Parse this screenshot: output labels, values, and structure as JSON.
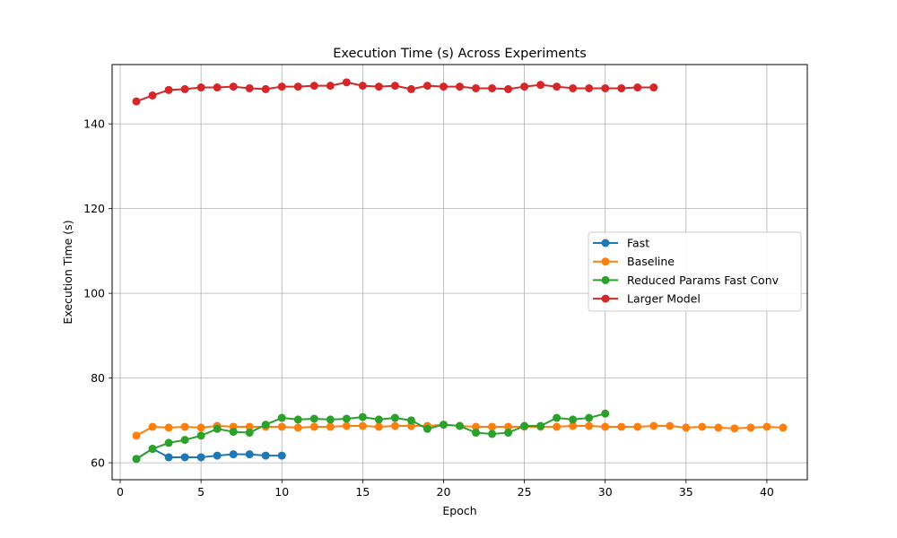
{
  "chart_data": {
    "type": "line",
    "title": "Execution Time (s) Across Experiments",
    "xlabel": "Epoch",
    "ylabel": "Execution Time (s)",
    "xlim": [
      -0.5,
      42.5
    ],
    "ylim": [
      56,
      154
    ],
    "x_ticks": [
      0,
      5,
      10,
      15,
      20,
      25,
      30,
      35,
      40
    ],
    "y_ticks": [
      60,
      80,
      100,
      120,
      140
    ],
    "grid": true,
    "legend_position": "center-right",
    "series": [
      {
        "name": "Fast",
        "color": "#1f77b4",
        "x": [
          1,
          2,
          3,
          4,
          5,
          6,
          7,
          8,
          9,
          10
        ],
        "values": [
          60.9,
          63.3,
          61.3,
          61.3,
          61.3,
          61.7,
          62.0,
          62.0,
          61.7,
          61.7
        ]
      },
      {
        "name": "Baseline",
        "color": "#ff7f0e",
        "x": [
          1,
          2,
          3,
          4,
          5,
          6,
          7,
          8,
          9,
          10,
          11,
          12,
          13,
          14,
          15,
          16,
          17,
          18,
          19,
          20,
          21,
          22,
          23,
          24,
          25,
          26,
          27,
          28,
          29,
          30,
          31,
          32,
          33,
          34,
          35,
          36,
          37,
          38,
          39,
          40,
          41
        ],
        "values": [
          66.4,
          68.5,
          68.3,
          68.5,
          68.3,
          68.7,
          68.5,
          68.5,
          68.5,
          68.5,
          68.3,
          68.5,
          68.5,
          68.7,
          68.7,
          68.5,
          68.7,
          68.7,
          68.7,
          69.0,
          68.7,
          68.5,
          68.5,
          68.5,
          68.5,
          68.5,
          68.5,
          68.7,
          68.7,
          68.5,
          68.5,
          68.5,
          68.7,
          68.7,
          68.3,
          68.5,
          68.3,
          68.1,
          68.3,
          68.5,
          68.3
        ]
      },
      {
        "name": "Reduced Params Fast Conv",
        "color": "#2ca02c",
        "x": [
          1,
          2,
          3,
          4,
          5,
          6,
          7,
          8,
          9,
          10,
          11,
          12,
          13,
          14,
          15,
          16,
          17,
          18,
          19,
          20,
          21,
          22,
          23,
          24,
          25,
          26,
          27,
          28,
          29,
          30
        ],
        "values": [
          60.9,
          63.3,
          64.7,
          65.4,
          66.4,
          68.0,
          67.3,
          67.1,
          69.0,
          70.6,
          70.2,
          70.4,
          70.2,
          70.4,
          70.8,
          70.2,
          70.6,
          70.0,
          68.0,
          69.0,
          68.7,
          67.1,
          66.8,
          67.1,
          68.7,
          68.7,
          70.6,
          70.2,
          70.6,
          71.6
        ]
      },
      {
        "name": "Larger Model",
        "color": "#d62728",
        "x": [
          1,
          2,
          3,
          4,
          5,
          6,
          7,
          8,
          9,
          10,
          11,
          12,
          13,
          14,
          15,
          16,
          17,
          18,
          19,
          20,
          21,
          22,
          23,
          24,
          25,
          26,
          27,
          28,
          29,
          30,
          31,
          32,
          33
        ],
        "values": [
          145.3,
          146.7,
          148.0,
          148.2,
          148.6,
          148.6,
          148.8,
          148.4,
          148.2,
          148.8,
          148.8,
          149.0,
          149.0,
          149.8,
          149.0,
          148.8,
          149.0,
          148.2,
          149.0,
          148.8,
          148.8,
          148.4,
          148.4,
          148.2,
          148.8,
          149.2,
          148.8,
          148.4,
          148.4,
          148.4,
          148.4,
          148.6,
          148.6
        ]
      }
    ]
  }
}
